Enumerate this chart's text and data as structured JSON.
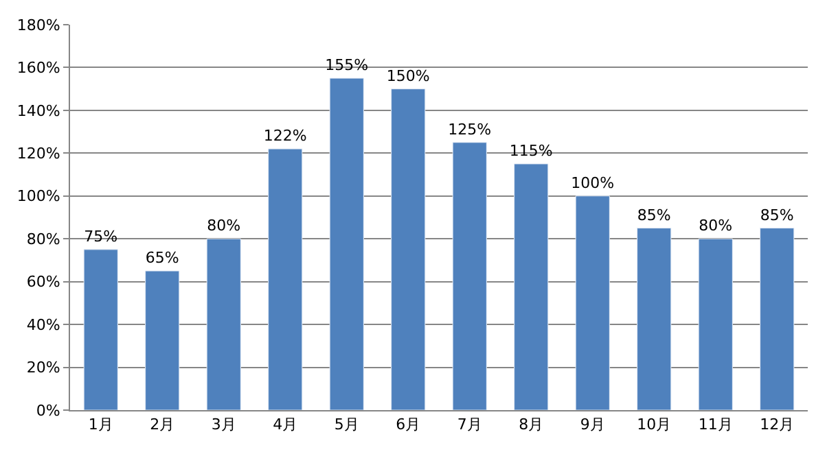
{
  "chart_data": {
    "type": "bar",
    "categories": [
      "1月",
      "2月",
      "3月",
      "4月",
      "5月",
      "6月",
      "7月",
      "8月",
      "9月",
      "10月",
      "11月",
      "12月"
    ],
    "values": [
      75,
      65,
      80,
      122,
      155,
      150,
      125,
      115,
      100,
      85,
      80,
      85
    ],
    "value_labels": [
      "75%",
      "65%",
      "80%",
      "122%",
      "155%",
      "150%",
      "125%",
      "115%",
      "100%",
      "85%",
      "80%",
      "85%"
    ],
    "color": "#4f81bd",
    "ylim": [
      0,
      180
    ],
    "yticks": [
      {
        "value": 0,
        "label": "0%"
      },
      {
        "value": 20,
        "label": "20%"
      },
      {
        "value": 40,
        "label": "40%"
      },
      {
        "value": 60,
        "label": "60%"
      },
      {
        "value": 80,
        "label": "80%"
      },
      {
        "value": 100,
        "label": "100%"
      },
      {
        "value": 120,
        "label": "120%"
      },
      {
        "value": 140,
        "label": "140%"
      },
      {
        "value": 160,
        "label": "160%"
      },
      {
        "value": 180,
        "label": "180%"
      }
    ],
    "grid": "y"
  }
}
